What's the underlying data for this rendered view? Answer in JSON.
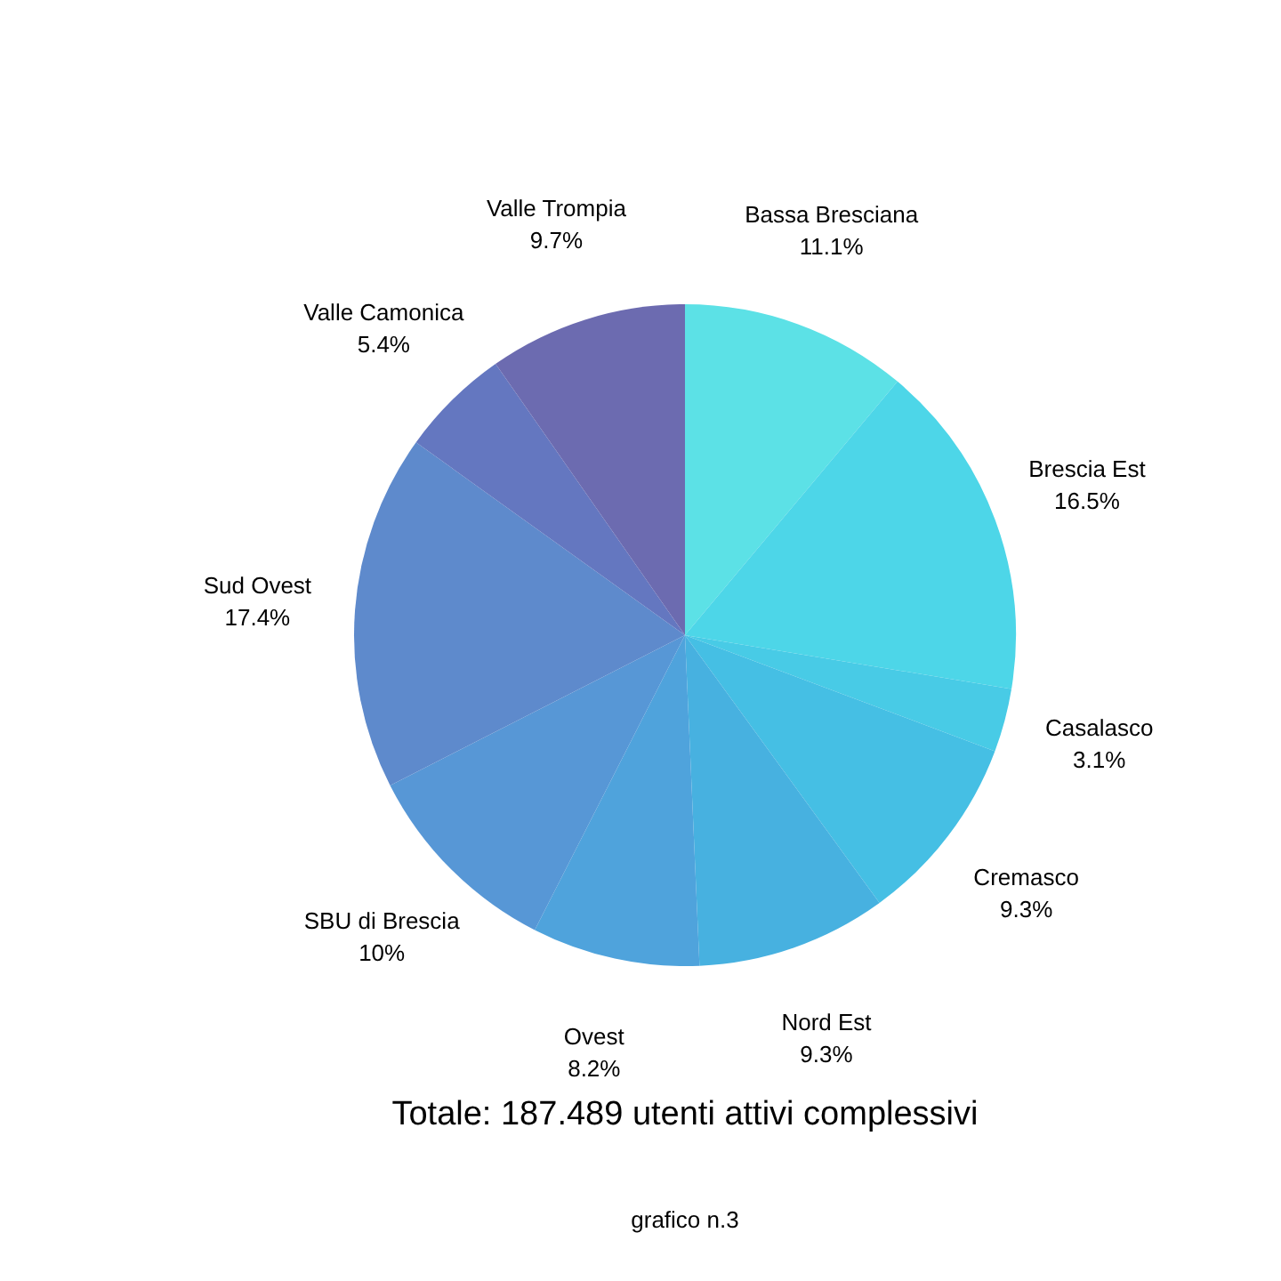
{
  "chart_data": {
    "type": "pie",
    "categories": [
      "Bassa Bresciana",
      "Brescia Est",
      "Casalasco",
      "Cremasco",
      "Nord Est",
      "Ovest",
      "SBU di Brescia",
      "Sud Ovest",
      "Valle Camonica",
      "Valle Trompia"
    ],
    "values": [
      11.1,
      16.5,
      3.1,
      9.3,
      9.3,
      8.2,
      10,
      17.4,
      5.4,
      9.7
    ],
    "value_labels": [
      "11.1%",
      "16.5%",
      "3.1%",
      "9.3%",
      "9.3%",
      "8.2%",
      "10%",
      "17.4%",
      "5.4%",
      "9.7%"
    ],
    "colors": [
      "#5ce1e6",
      "#4dd6e8",
      "#48cbe6",
      "#45bfe4",
      "#47b1e0",
      "#4fa3dc",
      "#5797d6",
      "#5e8acc",
      "#6477c0",
      "#6c6bb0"
    ],
    "legend": false,
    "annotations": [
      "Totale: 187.489 utenti attivi complessivi",
      "grafico n.3"
    ]
  }
}
